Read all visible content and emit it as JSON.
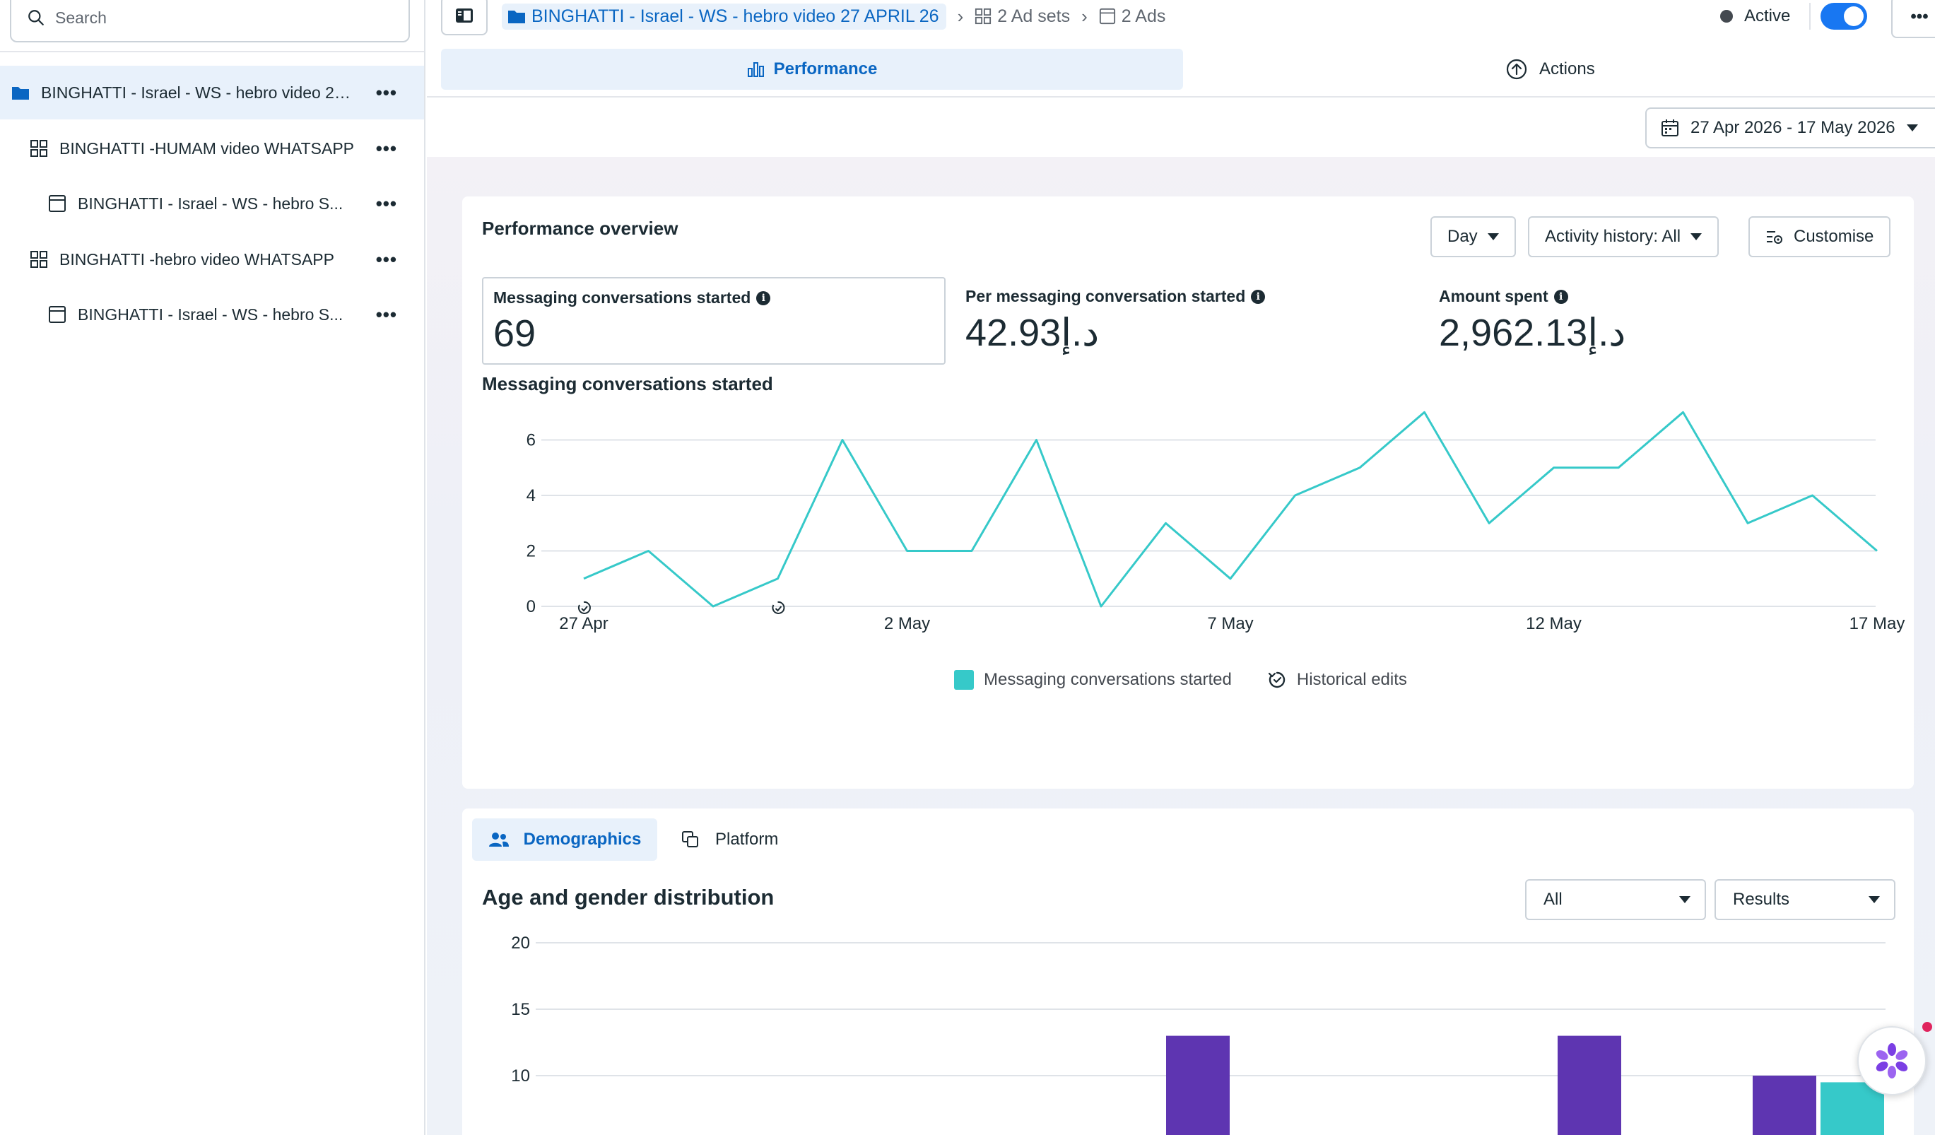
{
  "sidebar": {
    "search_placeholder": "Search",
    "items": [
      {
        "label": "BINGHATTI - Israel - WS - hebro video 27 APRIL 26",
        "icon": "folder-icon"
      },
      {
        "label": "BINGHATTI -HUMAM video WHATSAPP",
        "icon": "ad-set-icon"
      },
      {
        "label": "BINGHATTI - Israel - WS - hebro S...",
        "icon": "ad-icon"
      },
      {
        "label": "BINGHATTI -hebro video WHATSAPP",
        "icon": "ad-set-icon"
      },
      {
        "label": "BINGHATTI - Israel - WS - hebro S...",
        "icon": "ad-icon"
      }
    ]
  },
  "topbar": {
    "breadcrumb_campaign": "BINGHATTI - Israel - WS - hebro video 27 APRIL 26",
    "breadcrumb_adsets": "2 Ad sets",
    "breadcrumb_ads": "2 Ads",
    "status_label": "Active",
    "more_label": "•••"
  },
  "tabs": {
    "performance": "Performance",
    "actions": "Actions"
  },
  "date_range": "27 Apr 2026 - 17 May 2026",
  "performance": {
    "title": "Performance overview",
    "granularity": "Day",
    "activity_history": "Activity history: All",
    "customise": "Customise",
    "metrics": [
      {
        "label": "Messaging conversations started",
        "value": "69"
      },
      {
        "label": "Per messaging conversation started",
        "value": "42.93د.إ"
      },
      {
        "label": "Amount spent",
        "value": "2,962.13د.إ"
      }
    ],
    "chart_title": "Messaging conversations started",
    "legend_series": "Messaging conversations started",
    "legend_edits": "Historical edits"
  },
  "chart_data": [
    {
      "type": "line",
      "x": [
        "27 Apr",
        "28 Apr",
        "29 Apr",
        "30 Apr",
        "1 May",
        "2 May",
        "3 May",
        "4 May",
        "5 May",
        "6 May",
        "7 May",
        "8 May",
        "9 May",
        "10 May",
        "11 May",
        "12 May",
        "13 May",
        "14 May",
        "15 May",
        "16 May",
        "17 May"
      ],
      "series": [
        {
          "name": "Messaging conversations started",
          "values": [
            1,
            2,
            0,
            1,
            6,
            2,
            2,
            6,
            0,
            3,
            1,
            4,
            5,
            7,
            3,
            5,
            5,
            7,
            3,
            4,
            2
          ],
          "color": "#36c9c9"
        }
      ],
      "x_tick_labels": [
        "27 Apr",
        "2 May",
        "7 May",
        "12 May",
        "17 May"
      ],
      "y_ticks": [
        0,
        2,
        4,
        6
      ],
      "ylim": [
        0,
        7
      ],
      "historical_edit_markers": [
        "27 Apr",
        "30 Apr"
      ],
      "grid": true
    },
    {
      "type": "bar",
      "title": "Age and gender distribution",
      "y_ticks": [
        10,
        15,
        20
      ],
      "visible_bars": [
        {
          "value": 13,
          "color": "#5e35b1"
        },
        {
          "value": 13,
          "color": "#5e35b1"
        },
        {
          "value": 10,
          "color": "#5e35b1"
        },
        {
          "value": 9.5,
          "color": "#36c9c9"
        }
      ],
      "grid": true
    }
  ],
  "demographics": {
    "tab_demographics": "Demographics",
    "tab_platform": "Platform",
    "title": "Age and gender distribution",
    "filter_all": "All",
    "filter_results": "Results"
  }
}
